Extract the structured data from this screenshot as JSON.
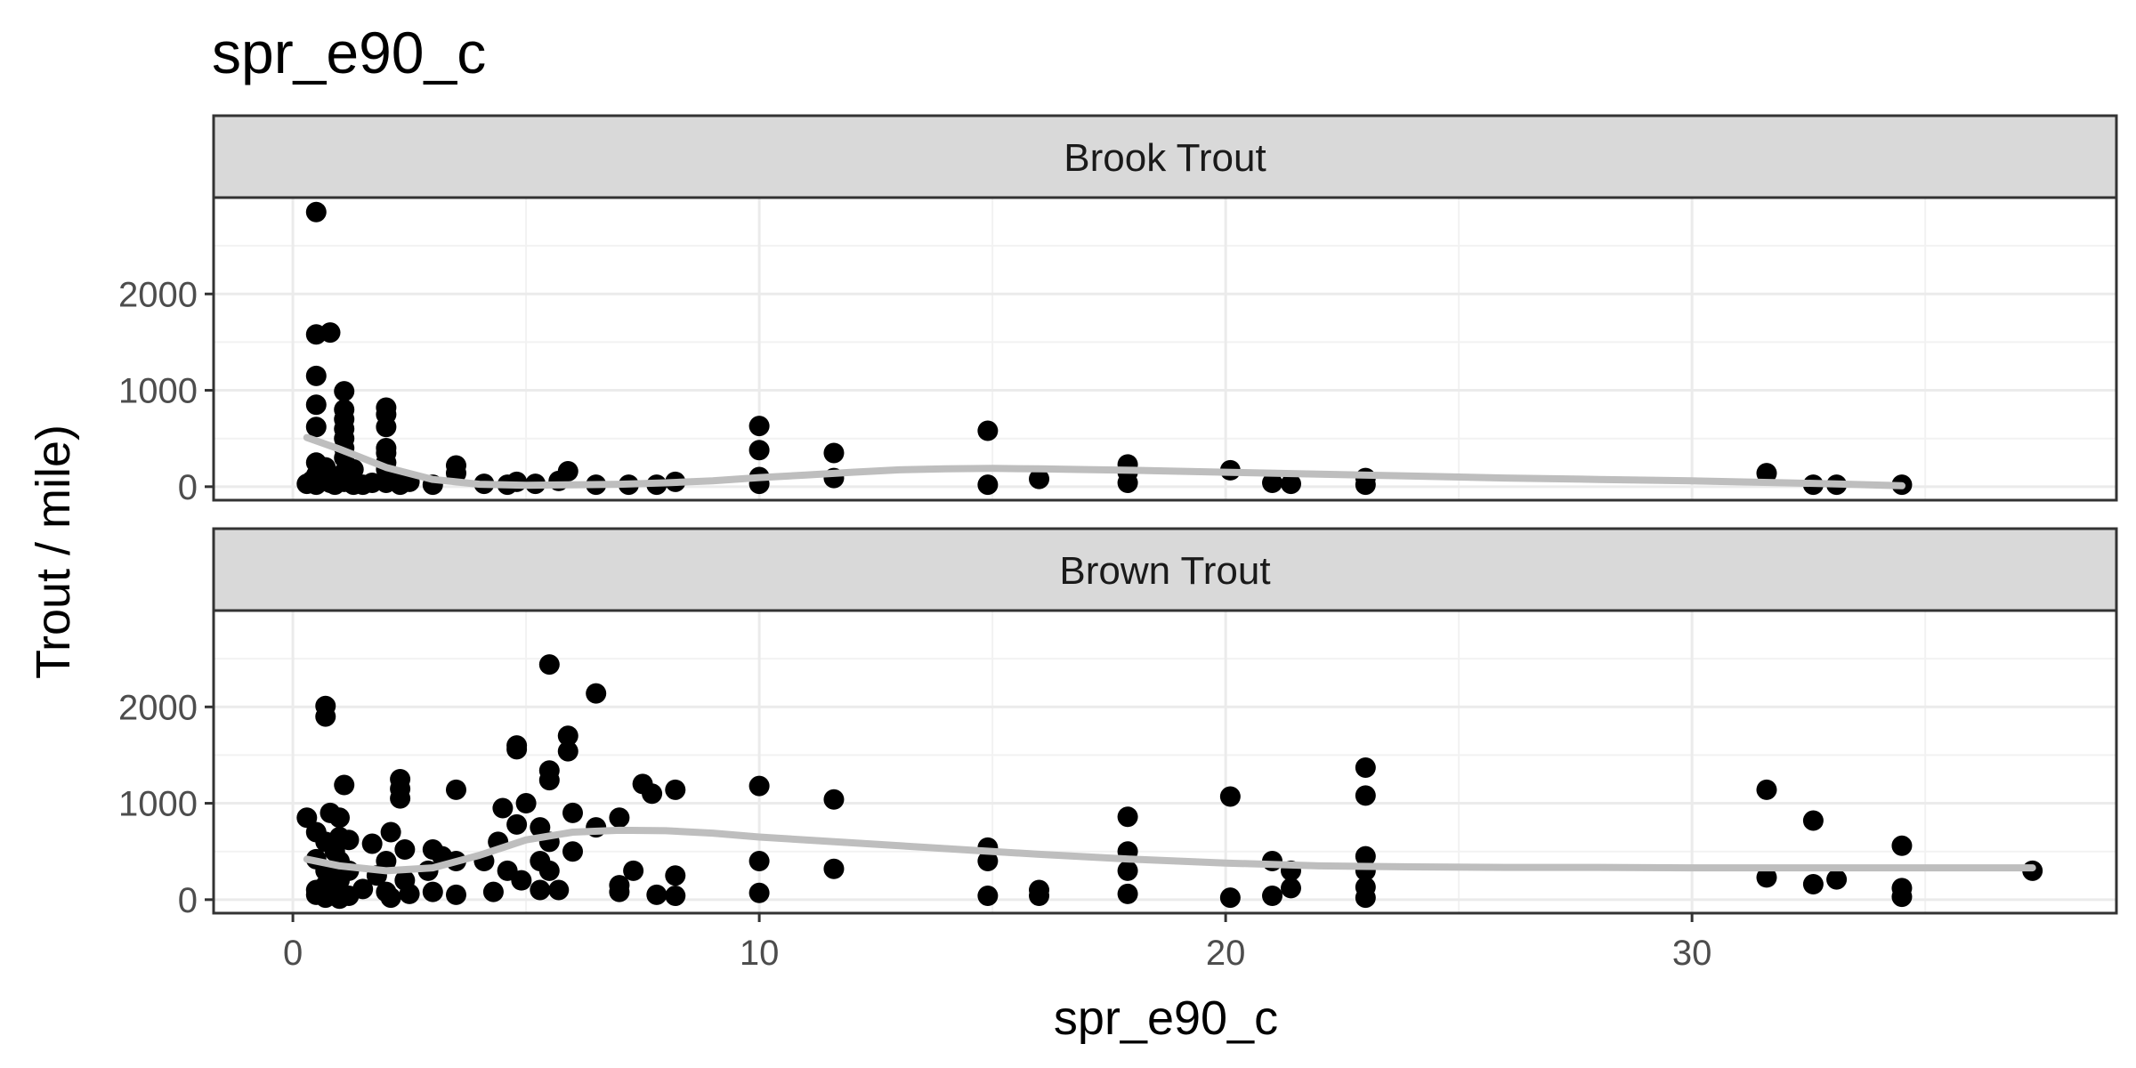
{
  "chart_data": {
    "type": "scatter",
    "title": "spr_e90_c",
    "xlabel": "spr_e90_c",
    "ylabel": "Trout / mile)",
    "xlim": [
      -1.7,
      39.1
    ],
    "ylim": [
      -140,
      3000
    ],
    "x_ticks": [
      0,
      10,
      20,
      30
    ],
    "x_tick_labels": [
      "0",
      "10",
      "20",
      "30"
    ],
    "y_ticks": [
      0,
      1000,
      2000
    ],
    "y_tick_labels": [
      "0",
      "1000",
      "2000"
    ],
    "grid": true,
    "colors": {
      "points": "#000000",
      "smooth_line": "#bebebe",
      "strip_fill": "#d9d9d9",
      "panel_border": "#333333",
      "grid_major": "#ebebeb",
      "grid_minor": "#f2f2f2"
    },
    "panels": [
      {
        "label": "Brook Trout",
        "points": [
          [
            0.5,
            2850
          ],
          [
            0.5,
            1580
          ],
          [
            0.8,
            1600
          ],
          [
            0.5,
            1150
          ],
          [
            0.5,
            850
          ],
          [
            0.5,
            620
          ],
          [
            0.5,
            250
          ],
          [
            0.5,
            120
          ],
          [
            0.3,
            30
          ],
          [
            0.4,
            60
          ],
          [
            0.5,
            20
          ],
          [
            0.7,
            200
          ],
          [
            0.8,
            100
          ],
          [
            0.8,
            40
          ],
          [
            0.9,
            20
          ],
          [
            1.1,
            990
          ],
          [
            1.1,
            800
          ],
          [
            1.1,
            700
          ],
          [
            1.1,
            600
          ],
          [
            1.1,
            500
          ],
          [
            1.1,
            400
          ],
          [
            1.1,
            300
          ],
          [
            1.1,
            150
          ],
          [
            1.1,
            50
          ],
          [
            1.3,
            180
          ],
          [
            1.3,
            20
          ],
          [
            1.5,
            20
          ],
          [
            1.7,
            40
          ],
          [
            2.0,
            820
          ],
          [
            2.0,
            750
          ],
          [
            2.0,
            620
          ],
          [
            2.0,
            400
          ],
          [
            2.0,
            350
          ],
          [
            2.0,
            250
          ],
          [
            2.0,
            180
          ],
          [
            2.0,
            40
          ],
          [
            2.2,
            70
          ],
          [
            2.3,
            20
          ],
          [
            2.5,
            50
          ],
          [
            3.0,
            20
          ],
          [
            3.5,
            220
          ],
          [
            3.5,
            140
          ],
          [
            4.1,
            30
          ],
          [
            4.6,
            20
          ],
          [
            4.8,
            50
          ],
          [
            5.2,
            30
          ],
          [
            5.7,
            60
          ],
          [
            5.9,
            160
          ],
          [
            6.5,
            20
          ],
          [
            7.2,
            20
          ],
          [
            7.8,
            20
          ],
          [
            8.2,
            50
          ],
          [
            10.0,
            630
          ],
          [
            10.0,
            380
          ],
          [
            10.0,
            100
          ],
          [
            10.0,
            30
          ],
          [
            11.6,
            350
          ],
          [
            11.6,
            90
          ],
          [
            14.9,
            580
          ],
          [
            14.9,
            20
          ],
          [
            16.0,
            80
          ],
          [
            17.9,
            230
          ],
          [
            17.9,
            150
          ],
          [
            17.9,
            40
          ],
          [
            20.1,
            170
          ],
          [
            21.0,
            40
          ],
          [
            21.4,
            30
          ],
          [
            23.0,
            90
          ],
          [
            23.0,
            20
          ],
          [
            31.6,
            140
          ],
          [
            32.6,
            20
          ],
          [
            33.1,
            20
          ],
          [
            34.5,
            20
          ]
        ],
        "smooth": [
          [
            0.3,
            510
          ],
          [
            1.0,
            390
          ],
          [
            2.0,
            200
          ],
          [
            3.0,
            75
          ],
          [
            4.0,
            25
          ],
          [
            5.0,
            15
          ],
          [
            6.0,
            20
          ],
          [
            7.0,
            25
          ],
          [
            8.0,
            40
          ],
          [
            9.0,
            60
          ],
          [
            10.0,
            95
          ],
          [
            11.0,
            120
          ],
          [
            12.0,
            150
          ],
          [
            13.0,
            175
          ],
          [
            14.0,
            185
          ],
          [
            15.0,
            190
          ],
          [
            16.0,
            185
          ],
          [
            17.0,
            178
          ],
          [
            18.0,
            170
          ],
          [
            19.0,
            160
          ],
          [
            20.0,
            150
          ],
          [
            22.0,
            130
          ],
          [
            24.0,
            110
          ],
          [
            26.0,
            90
          ],
          [
            28.0,
            75
          ],
          [
            30.0,
            60
          ],
          [
            32.0,
            40
          ],
          [
            33.0,
            30
          ],
          [
            34.5,
            10
          ]
        ]
      },
      {
        "label": "Brown Trout",
        "points": [
          [
            0.3,
            850
          ],
          [
            0.5,
            700
          ],
          [
            0.5,
            420
          ],
          [
            0.5,
            100
          ],
          [
            0.5,
            50
          ],
          [
            0.7,
            2010
          ],
          [
            0.7,
            1900
          ],
          [
            0.7,
            600
          ],
          [
            0.7,
            300
          ],
          [
            0.7,
            150
          ],
          [
            0.7,
            20
          ],
          [
            0.8,
            900
          ],
          [
            0.9,
            500
          ],
          [
            0.9,
            250
          ],
          [
            1.0,
            850
          ],
          [
            1.0,
            650
          ],
          [
            1.0,
            400
          ],
          [
            1.0,
            200
          ],
          [
            1.0,
            80
          ],
          [
            1.0,
            10
          ],
          [
            1.1,
            1190
          ],
          [
            1.2,
            620
          ],
          [
            1.2,
            300
          ],
          [
            1.2,
            40
          ],
          [
            1.5,
            110
          ],
          [
            1.7,
            580
          ],
          [
            1.8,
            250
          ],
          [
            2.0,
            400
          ],
          [
            2.0,
            80
          ],
          [
            2.1,
            700
          ],
          [
            2.1,
            20
          ],
          [
            2.3,
            1250
          ],
          [
            2.3,
            1150
          ],
          [
            2.3,
            1050
          ],
          [
            2.4,
            520
          ],
          [
            2.4,
            200
          ],
          [
            2.5,
            60
          ],
          [
            2.9,
            300
          ],
          [
            3.0,
            520
          ],
          [
            3.0,
            80
          ],
          [
            3.2,
            450
          ],
          [
            3.5,
            1140
          ],
          [
            3.5,
            400
          ],
          [
            3.5,
            50
          ],
          [
            4.1,
            400
          ],
          [
            4.3,
            80
          ],
          [
            4.4,
            600
          ],
          [
            4.5,
            950
          ],
          [
            4.6,
            300
          ],
          [
            4.8,
            1600
          ],
          [
            4.8,
            1560
          ],
          [
            4.8,
            780
          ],
          [
            4.9,
            200
          ],
          [
            5.0,
            1000
          ],
          [
            5.3,
            750
          ],
          [
            5.3,
            400
          ],
          [
            5.3,
            100
          ],
          [
            5.5,
            2440
          ],
          [
            5.5,
            1340
          ],
          [
            5.5,
            1240
          ],
          [
            5.5,
            600
          ],
          [
            5.5,
            300
          ],
          [
            5.7,
            100
          ],
          [
            5.9,
            1700
          ],
          [
            5.9,
            1540
          ],
          [
            6.0,
            900
          ],
          [
            6.0,
            500
          ],
          [
            6.5,
            2140
          ],
          [
            6.5,
            750
          ],
          [
            7.0,
            850
          ],
          [
            7.0,
            150
          ],
          [
            7.0,
            80
          ],
          [
            7.3,
            300
          ],
          [
            7.5,
            1200
          ],
          [
            7.7,
            1100
          ],
          [
            7.8,
            50
          ],
          [
            8.2,
            1140
          ],
          [
            8.2,
            250
          ],
          [
            8.2,
            40
          ],
          [
            10.0,
            1180
          ],
          [
            10.0,
            400
          ],
          [
            10.0,
            70
          ],
          [
            11.6,
            1040
          ],
          [
            11.6,
            320
          ],
          [
            14.9,
            540
          ],
          [
            14.9,
            400
          ],
          [
            14.9,
            40
          ],
          [
            16.0,
            100
          ],
          [
            16.0,
            40
          ],
          [
            17.9,
            860
          ],
          [
            17.9,
            500
          ],
          [
            17.9,
            300
          ],
          [
            17.9,
            60
          ],
          [
            20.1,
            1070
          ],
          [
            20.1,
            20
          ],
          [
            21.0,
            400
          ],
          [
            21.0,
            40
          ],
          [
            21.4,
            300
          ],
          [
            21.4,
            120
          ],
          [
            23.0,
            1370
          ],
          [
            23.0,
            1080
          ],
          [
            23.0,
            450
          ],
          [
            23.0,
            300
          ],
          [
            23.0,
            130
          ],
          [
            23.0,
            20
          ],
          [
            31.6,
            1140
          ],
          [
            31.6,
            230
          ],
          [
            32.6,
            820
          ],
          [
            32.6,
            160
          ],
          [
            33.1,
            210
          ],
          [
            34.5,
            560
          ],
          [
            34.5,
            120
          ],
          [
            34.5,
            30
          ],
          [
            37.3,
            300
          ]
        ],
        "smooth": [
          [
            0.3,
            420
          ],
          [
            1.0,
            350
          ],
          [
            2.0,
            300
          ],
          [
            3.0,
            330
          ],
          [
            4.0,
            460
          ],
          [
            5.0,
            620
          ],
          [
            6.0,
            700
          ],
          [
            7.0,
            720
          ],
          [
            8.0,
            715
          ],
          [
            9.0,
            690
          ],
          [
            10.0,
            650
          ],
          [
            12.0,
            590
          ],
          [
            14.0,
            530
          ],
          [
            16.0,
            470
          ],
          [
            18.0,
            420
          ],
          [
            20.0,
            380
          ],
          [
            22.0,
            350
          ],
          [
            24.0,
            340
          ],
          [
            26.0,
            335
          ],
          [
            28.0,
            335
          ],
          [
            30.0,
            330
          ],
          [
            32.0,
            330
          ],
          [
            34.0,
            330
          ],
          [
            36.0,
            330
          ],
          [
            37.3,
            330
          ]
        ]
      }
    ]
  }
}
